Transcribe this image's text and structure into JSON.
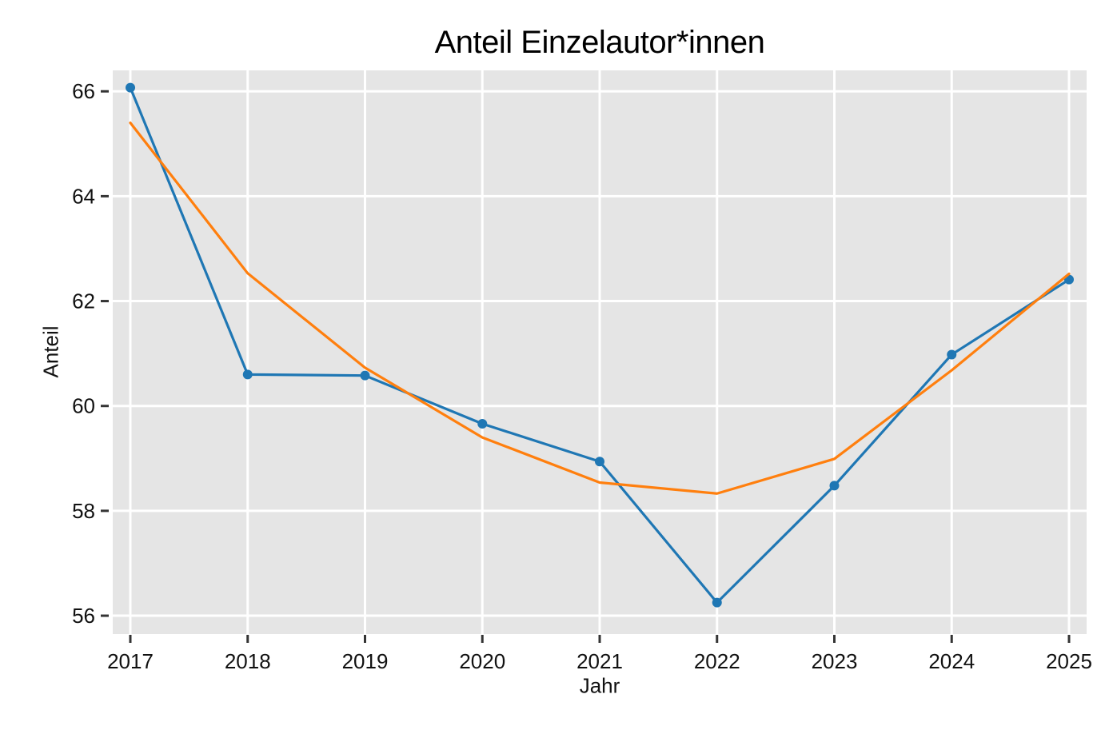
{
  "chart_data": {
    "type": "line",
    "title": "Anteil Einzelautor*innen",
    "xlabel": "Jahr",
    "ylabel": "Anteil",
    "x": [
      2017,
      2018,
      2019,
      2020,
      2021,
      2022,
      2023,
      2024,
      2025
    ],
    "x_tick_labels": [
      "2017",
      "2018",
      "2019",
      "2020",
      "2021",
      "2022",
      "2023",
      "2024",
      "2025"
    ],
    "y_ticks": [
      56,
      58,
      60,
      62,
      64,
      66
    ],
    "y_tick_labels": [
      "56",
      "58",
      "60",
      "62",
      "64",
      "66"
    ],
    "xlim": [
      2016.85,
      2025.15
    ],
    "ylim": [
      55.65,
      66.4
    ],
    "grid": true,
    "legend": "none",
    "series": [
      {
        "id": "blue-line-with-markers",
        "color": "#1f77b4",
        "marker": "circle",
        "values": [
          66.07,
          60.6,
          60.58,
          59.66,
          58.94,
          56.25,
          58.48,
          60.98,
          62.41
        ]
      },
      {
        "id": "orange-trend-line",
        "color": "#ff7f0e",
        "marker": "none",
        "values": [
          65.4,
          62.53,
          60.73,
          59.4,
          58.54,
          58.33,
          58.99,
          60.68,
          62.52
        ]
      }
    ],
    "style": {
      "figure_bg": "#ffffff",
      "panel_bg": "#e5e5e5",
      "grid_color": "#ffffff",
      "tick_color": "#343434",
      "label_color": "#111111",
      "title_color": "#000000"
    }
  }
}
